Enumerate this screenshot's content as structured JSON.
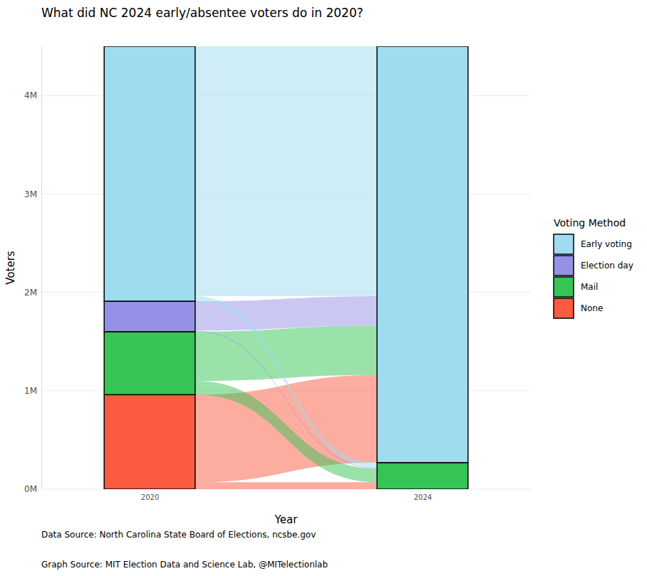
{
  "chart_data": {
    "type": "alluvial",
    "title": "What did NC 2024 early/absentee voters do in 2020?",
    "x_label": "Year",
    "y_label": "Voters",
    "legend_title": "Voting Method",
    "legend": "right",
    "captions": [
      "Data Source: North Carolina State Board of Elections, ncsbe.gov",
      "Graph Source: MIT Election Data and Science Lab, @MITelectionlab"
    ],
    "categories": [
      "2020",
      "2024"
    ],
    "series": [
      {
        "name": "Early voting",
        "color": "#a0dcf0",
        "values": [
          2590000,
          4230000
        ]
      },
      {
        "name": "Election day",
        "color": "#9591e6",
        "values": [
          310000,
          0
        ]
      },
      {
        "name": "Mail",
        "color": "#37c456",
        "values": [
          640000,
          270000
        ]
      },
      {
        "name": "None",
        "color": "#fa5b40",
        "values": [
          960000,
          0
        ]
      }
    ],
    "flows": [
      {
        "source": "None",
        "target": "Mail",
        "value": 70000
      },
      {
        "source": "None",
        "target": "Early voting",
        "value": 890000
      },
      {
        "source": "Mail",
        "target": "Mail",
        "value": 140000
      },
      {
        "source": "Mail",
        "target": "Early voting",
        "value": 500000
      },
      {
        "source": "Election day",
        "target": "Mail",
        "value": 10000
      },
      {
        "source": "Election day",
        "target": "Early voting",
        "value": 300000
      },
      {
        "source": "Early voting",
        "target": "Mail",
        "value": 50000
      },
      {
        "source": "Early voting",
        "target": "Early voting",
        "value": 2540000
      }
    ],
    "ylim": [
      0,
      4500000
    ],
    "yticks": [
      {
        "value": 0,
        "label": "0M"
      },
      {
        "value": 1000000,
        "label": "1M"
      },
      {
        "value": 2000000,
        "label": "2M"
      },
      {
        "value": 3000000,
        "label": "3M"
      },
      {
        "value": 4000000,
        "label": "4M"
      }
    ],
    "grid": true
  }
}
